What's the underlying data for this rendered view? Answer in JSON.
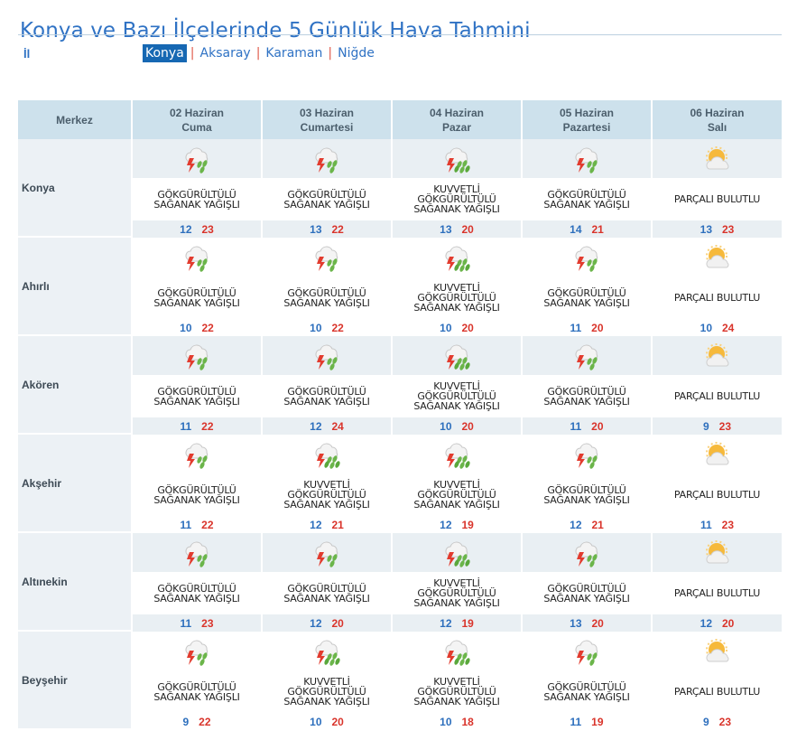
{
  "page": {
    "title": "Konya ve Bazı İlçelerinde 5 Günlük Hava Tahmini",
    "il_label": "İl"
  },
  "provinces": [
    {
      "label": "Konya",
      "active": true
    },
    {
      "label": "Aksaray",
      "active": false
    },
    {
      "label": "Karaman",
      "active": false
    },
    {
      "label": "Niğde",
      "active": false
    }
  ],
  "table": {
    "corner_label": "Merkez",
    "days": [
      {
        "date": "02 Haziran",
        "weekday": "Cuma"
      },
      {
        "date": "03 Haziran",
        "weekday": "Cumartesi"
      },
      {
        "date": "04 Haziran",
        "weekday": "Pazar"
      },
      {
        "date": "05 Haziran",
        "weekday": "Pazartesi"
      },
      {
        "date": "06 Haziran",
        "weekday": "Salı"
      }
    ],
    "rows": [
      {
        "city": "Konya",
        "cells": [
          {
            "icon": "thunderstorm-icon",
            "desc1": "GÖKGÜRÜLTÜLÜ",
            "desc2": "SAĞANAK YAĞIŞLI",
            "min": "12",
            "max": "23"
          },
          {
            "icon": "thunderstorm-icon",
            "desc1": "GÖKGÜRÜLTÜLÜ",
            "desc2": "SAĞANAK YAĞIŞLI",
            "min": "13",
            "max": "22"
          },
          {
            "icon": "heavy-thunderstorm-icon",
            "desc0": "KUVVETLİ",
            "desc1": "GÖKGÜRÜLTÜLÜ",
            "desc2": "SAĞANAK YAĞIŞLI",
            "min": "13",
            "max": "20"
          },
          {
            "icon": "thunderstorm-icon",
            "desc1": "GÖKGÜRÜLTÜLÜ",
            "desc2": "SAĞANAK YAĞIŞLI",
            "min": "14",
            "max": "21"
          },
          {
            "icon": "partly-cloudy-icon",
            "desc1": "PARÇALI BULUTLU",
            "min": "13",
            "max": "23"
          }
        ]
      },
      {
        "city": "Ahırlı",
        "cells": [
          {
            "icon": "thunderstorm-icon",
            "desc1": "GÖKGÜRÜLTÜLÜ",
            "desc2": "SAĞANAK YAĞIŞLI",
            "min": "10",
            "max": "22"
          },
          {
            "icon": "thunderstorm-icon",
            "desc1": "GÖKGÜRÜLTÜLÜ",
            "desc2": "SAĞANAK YAĞIŞLI",
            "min": "10",
            "max": "22"
          },
          {
            "icon": "heavy-thunderstorm-icon",
            "desc0": "KUVVETLİ",
            "desc1": "GÖKGÜRÜLTÜLÜ",
            "desc2": "SAĞANAK YAĞIŞLI",
            "min": "10",
            "max": "20"
          },
          {
            "icon": "thunderstorm-icon",
            "desc1": "GÖKGÜRÜLTÜLÜ",
            "desc2": "SAĞANAK YAĞIŞLI",
            "min": "11",
            "max": "20"
          },
          {
            "icon": "partly-cloudy-icon",
            "desc1": "PARÇALI BULUTLU",
            "min": "10",
            "max": "24"
          }
        ]
      },
      {
        "city": "Akören",
        "cells": [
          {
            "icon": "thunderstorm-icon",
            "desc1": "GÖKGÜRÜLTÜLÜ",
            "desc2": "SAĞANAK YAĞIŞLI",
            "min": "11",
            "max": "22"
          },
          {
            "icon": "thunderstorm-icon",
            "desc1": "GÖKGÜRÜLTÜLÜ",
            "desc2": "SAĞANAK YAĞIŞLI",
            "min": "12",
            "max": "24"
          },
          {
            "icon": "heavy-thunderstorm-icon",
            "desc0": "KUVVETLİ",
            "desc1": "GÖKGÜRÜLTÜLÜ",
            "desc2": "SAĞANAK YAĞIŞLI",
            "min": "10",
            "max": "20"
          },
          {
            "icon": "thunderstorm-icon",
            "desc1": "GÖKGÜRÜLTÜLÜ",
            "desc2": "SAĞANAK YAĞIŞLI",
            "min": "11",
            "max": "20"
          },
          {
            "icon": "partly-cloudy-icon",
            "desc1": "PARÇALI BULUTLU",
            "min": "9",
            "max": "23"
          }
        ]
      },
      {
        "city": "Akşehir",
        "cells": [
          {
            "icon": "thunderstorm-icon",
            "desc1": "GÖKGÜRÜLTÜLÜ",
            "desc2": "SAĞANAK YAĞIŞLI",
            "min": "11",
            "max": "22"
          },
          {
            "icon": "heavy-thunderstorm-icon",
            "desc0": "KUVVETLİ",
            "desc1": "GÖKGÜRÜLTÜLÜ",
            "desc2": "SAĞANAK YAĞIŞLI",
            "min": "12",
            "max": "21"
          },
          {
            "icon": "heavy-thunderstorm-icon",
            "desc0": "KUVVETLİ",
            "desc1": "GÖKGÜRÜLTÜLÜ",
            "desc2": "SAĞANAK YAĞIŞLI",
            "min": "12",
            "max": "19"
          },
          {
            "icon": "thunderstorm-icon",
            "desc1": "GÖKGÜRÜLTÜLÜ",
            "desc2": "SAĞANAK YAĞIŞLI",
            "min": "12",
            "max": "21"
          },
          {
            "icon": "partly-cloudy-icon",
            "desc1": "PARÇALI BULUTLU",
            "min": "11",
            "max": "23"
          }
        ]
      },
      {
        "city": "Altınekin",
        "cells": [
          {
            "icon": "thunderstorm-icon",
            "desc1": "GÖKGÜRÜLTÜLÜ",
            "desc2": "SAĞANAK YAĞIŞLI",
            "min": "11",
            "max": "23"
          },
          {
            "icon": "thunderstorm-icon",
            "desc1": "GÖKGÜRÜLTÜLÜ",
            "desc2": "SAĞANAK YAĞIŞLI",
            "min": "12",
            "max": "20"
          },
          {
            "icon": "heavy-thunderstorm-icon",
            "desc0": "KUVVETLİ",
            "desc1": "GÖKGÜRÜLTÜLÜ",
            "desc2": "SAĞANAK YAĞIŞLI",
            "min": "12",
            "max": "19"
          },
          {
            "icon": "thunderstorm-icon",
            "desc1": "GÖKGÜRÜLTÜLÜ",
            "desc2": "SAĞANAK YAĞIŞLI",
            "min": "13",
            "max": "20"
          },
          {
            "icon": "partly-cloudy-icon",
            "desc1": "PARÇALI BULUTLU",
            "min": "12",
            "max": "20"
          }
        ]
      },
      {
        "city": "Beyşehir",
        "cells": [
          {
            "icon": "thunderstorm-icon",
            "desc1": "GÖKGÜRÜLTÜLÜ",
            "desc2": "SAĞANAK YAĞIŞLI",
            "min": "9",
            "max": "22"
          },
          {
            "icon": "heavy-thunderstorm-icon",
            "desc0": "KUVVETLİ",
            "desc1": "GÖKGÜRÜLTÜLÜ",
            "desc2": "SAĞANAK YAĞIŞLI",
            "min": "10",
            "max": "20"
          },
          {
            "icon": "heavy-thunderstorm-icon",
            "desc0": "KUVVETLİ",
            "desc1": "GÖKGÜRÜLTÜLÜ",
            "desc2": "SAĞANAK YAĞIŞLI",
            "min": "10",
            "max": "18"
          },
          {
            "icon": "thunderstorm-icon",
            "desc1": "GÖKGÜRÜLTÜLÜ",
            "desc2": "SAĞANAK YAĞIŞLI",
            "min": "11",
            "max": "19"
          },
          {
            "icon": "partly-cloudy-icon",
            "desc1": "PARÇALI BULUTLU",
            "min": "9",
            "max": "23"
          }
        ]
      }
    ]
  },
  "colors": {
    "title": "#2f72c4",
    "header_bg": "#cde1ec",
    "alt_row_bg": "#e9eff3",
    "min_temp": "#2d6fbd",
    "max_temp": "#d9342b",
    "active_tab": "#1668b3"
  }
}
